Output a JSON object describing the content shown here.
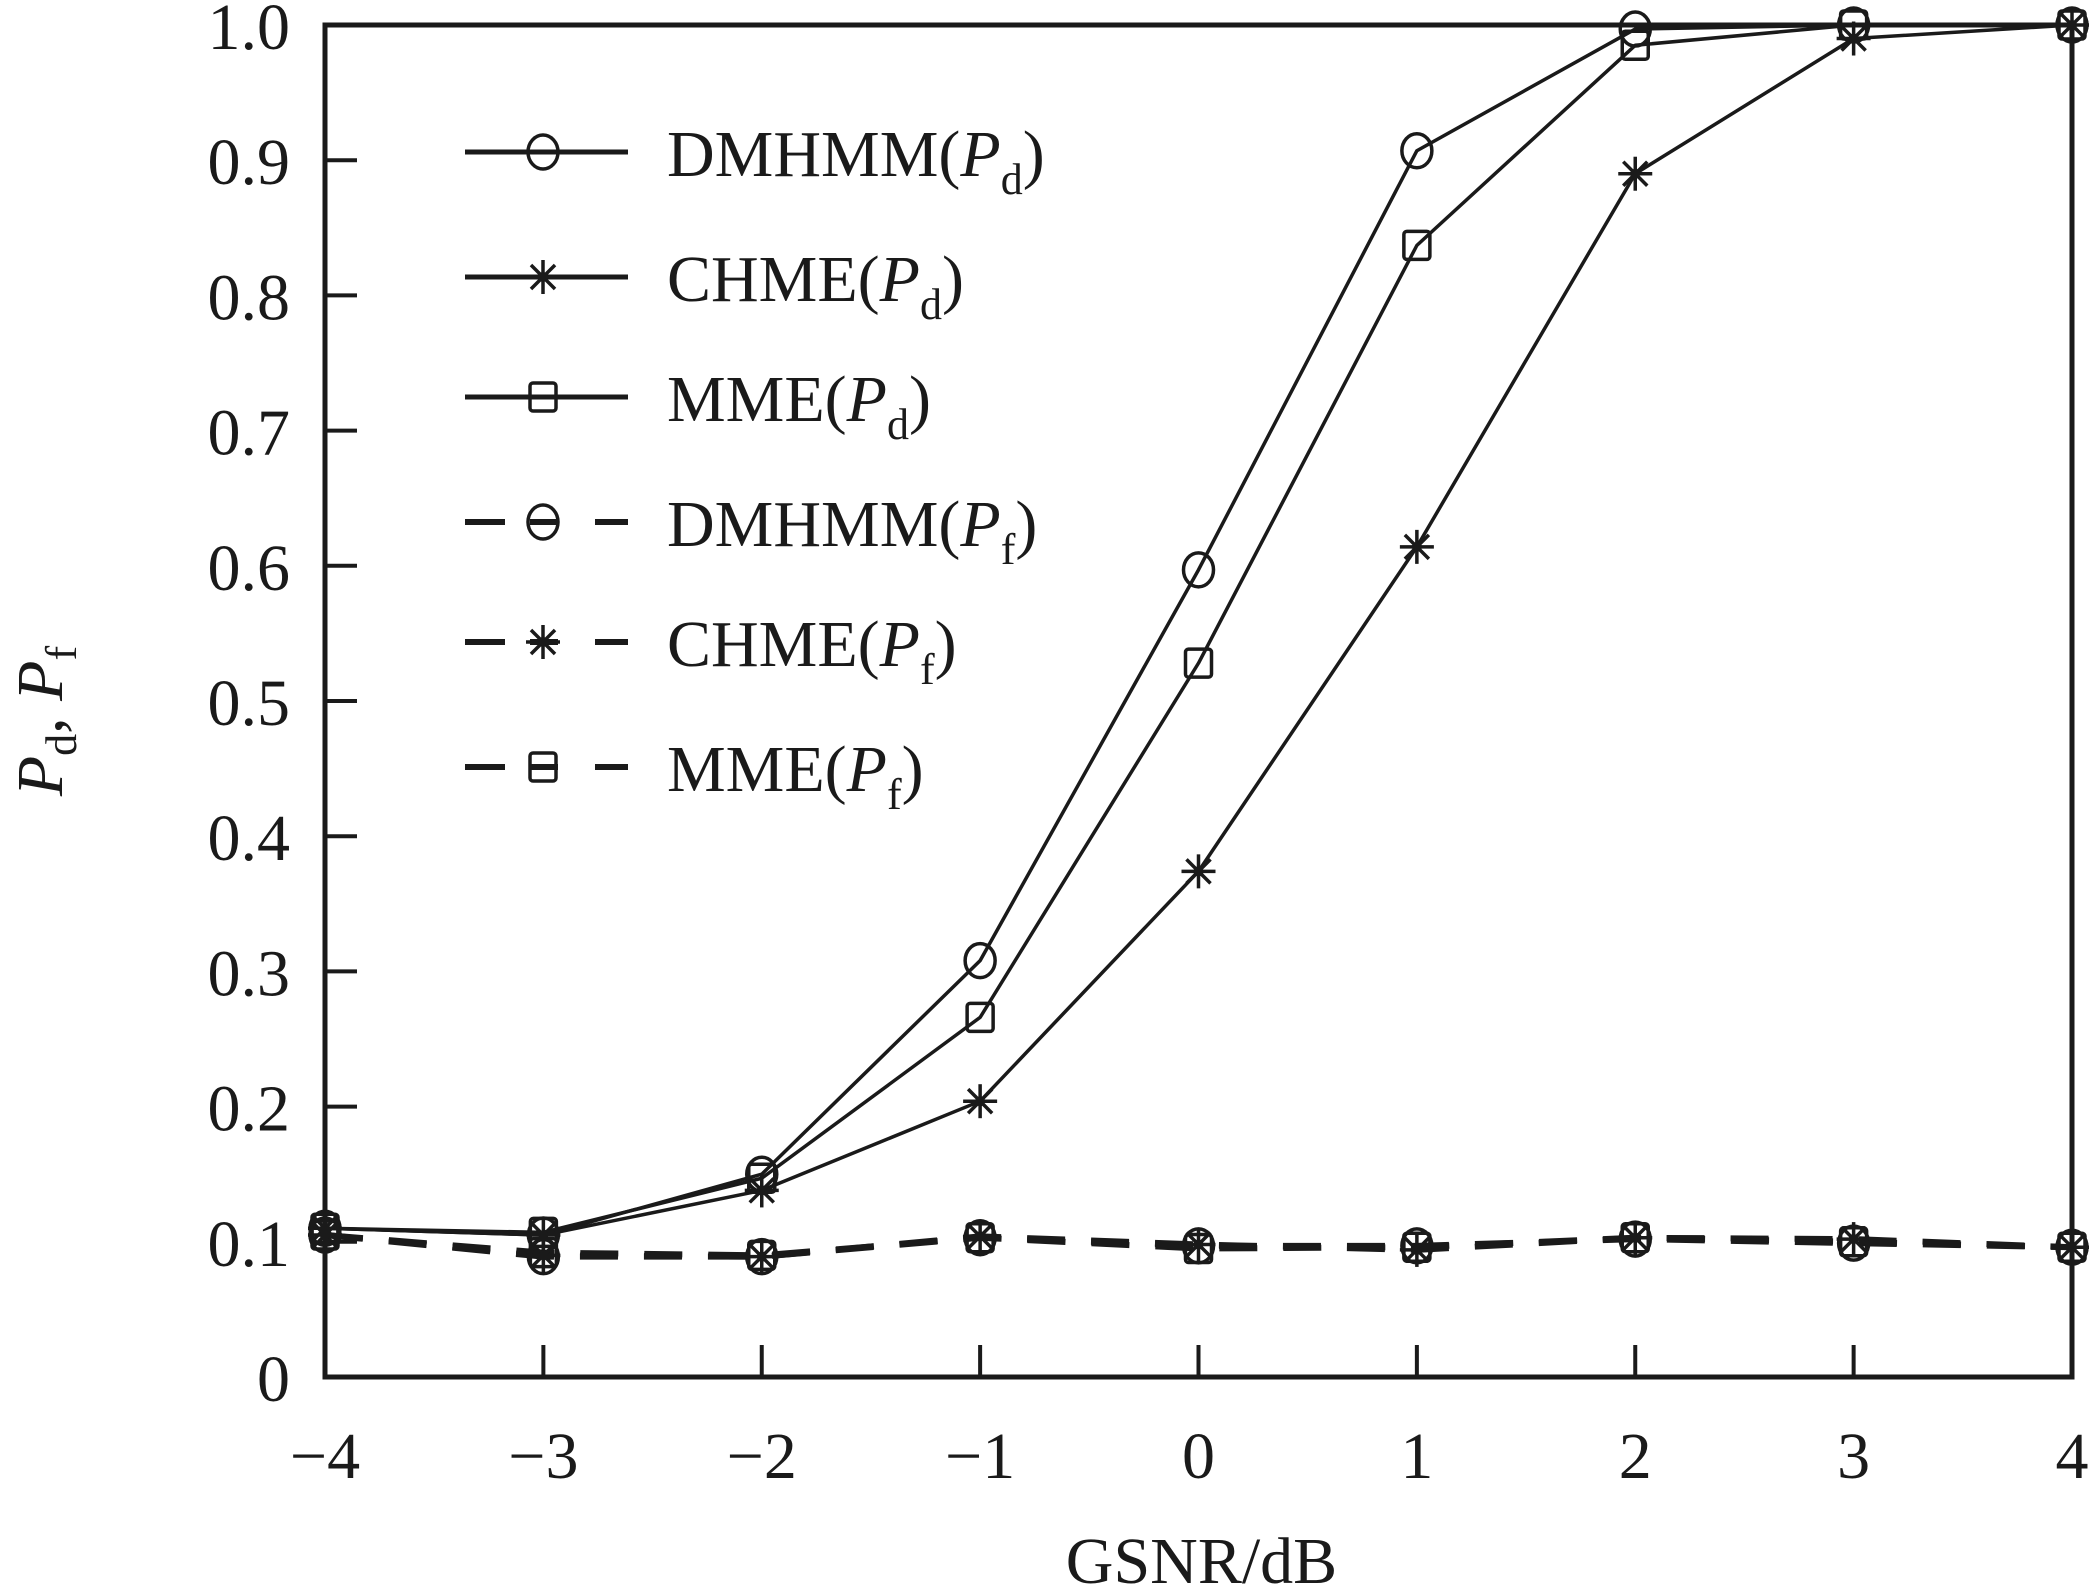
{
  "chart_data": {
    "type": "line",
    "title": "",
    "xlabel": "GSNR/dB",
    "ylabel": {
      "parts": [
        {
          "text": "P",
          "italic": true
        },
        {
          "text": "d",
          "sub": true
        },
        {
          "text": ", "
        },
        {
          "text": "P",
          "italic": true
        },
        {
          "text": "f",
          "sub": true
        }
      ]
    },
    "xlim": [
      -4,
      4
    ],
    "ylim": [
      0,
      1.0
    ],
    "x": [
      -4,
      -3,
      -2,
      -1,
      0,
      1,
      2,
      3,
      4
    ],
    "xticks": [
      "−4",
      "−3",
      "−2",
      "−1",
      "0",
      "1",
      "2",
      "3",
      "4"
    ],
    "yticks": [
      "0",
      "0.1",
      "0.2",
      "0.3",
      "0.4",
      "0.5",
      "0.6",
      "0.7",
      "0.8",
      "0.9",
      "1.0"
    ],
    "ytick_values": [
      0,
      0.1,
      0.2,
      0.3,
      0.4,
      0.5,
      0.6,
      0.7,
      0.8,
      0.9,
      1.0
    ],
    "grid": false,
    "legend_position": "top-left",
    "series": [
      {
        "name": "DMHMM(Pd)",
        "label_main": "DMHMM(",
        "label_var": "P",
        "label_sub": "d",
        "marker": "circle",
        "style": "solid",
        "values": [
          0.11,
          0.105,
          0.15,
          0.308,
          0.597,
          0.907,
          0.997,
          1.0,
          1.0
        ]
      },
      {
        "name": "CHME(Pd)",
        "label_main": "CHME(",
        "label_var": "P",
        "label_sub": "d",
        "marker": "star",
        "style": "solid",
        "values": [
          0.11,
          0.105,
          0.138,
          0.204,
          0.374,
          0.614,
          0.89,
          0.99,
          1.0
        ]
      },
      {
        "name": "MME(Pd)",
        "label_main": "MME(",
        "label_var": "P",
        "label_sub": "d",
        "marker": "square",
        "style": "solid",
        "values": [
          0.11,
          0.107,
          0.147,
          0.266,
          0.528,
          0.837,
          0.985,
          1.0,
          1.0
        ]
      },
      {
        "name": "DMHMM(Pf)",
        "label_main": "DMHMM(",
        "label_var": "P",
        "label_sub": "f",
        "marker": "circle",
        "style": "dashed",
        "values": [
          0.105,
          0.089,
          0.089,
          0.103,
          0.097,
          0.097,
          0.102,
          0.099,
          0.096
        ]
      },
      {
        "name": "CHME(Pf)",
        "label_main": "CHME(",
        "label_var": "P",
        "label_sub": "f",
        "marker": "star",
        "style": "dashed",
        "values": [
          0.105,
          0.09,
          0.089,
          0.104,
          0.098,
          0.094,
          0.103,
          0.102,
          0.096
        ]
      },
      {
        "name": "MME(Pf)",
        "label_main": "MME(",
        "label_var": "P",
        "label_sub": "f",
        "marker": "square",
        "style": "dashed",
        "values": [
          0.105,
          0.092,
          0.09,
          0.103,
          0.095,
          0.096,
          0.103,
          0.1,
          0.096
        ]
      }
    ],
    "colors": {
      "line": "#1a1a1a",
      "axis": "#1a1a1a",
      "background": "#ffffff"
    }
  }
}
